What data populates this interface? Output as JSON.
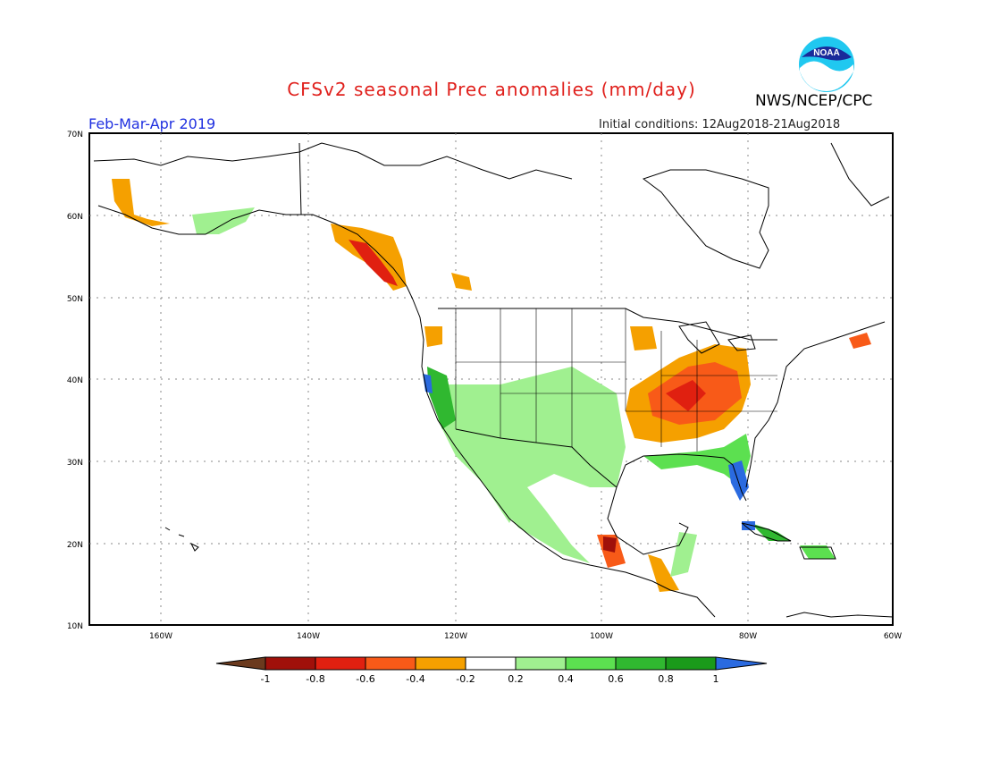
{
  "header": {
    "title": "CFSv2 seasonal Prec anomalies (mm/day)",
    "agency": "NWS/NCEP/CPC",
    "period": "Feb-Mar-Apr 2019",
    "initial_conditions": "Initial conditions: 12Aug2018-21Aug2018",
    "logo_text": "NOAA"
  },
  "colors": {
    "title": "#e0201c",
    "period": "#2030e0",
    "ocean": "#ffffff",
    "land_outline": "#000000",
    "grid": "#888888"
  },
  "axes": {
    "lat_labels": [
      "70N",
      "60N",
      "50N",
      "40N",
      "30N",
      "20N",
      "10N"
    ],
    "lon_labels": [
      "160W",
      "140W",
      "120W",
      "100W",
      "80W",
      "60W"
    ]
  },
  "colorbar": {
    "labels": [
      "-1",
      "-0.8",
      "-0.6",
      "-0.4",
      "-0.2",
      "0.2",
      "0.4",
      "0.6",
      "0.8",
      "1"
    ],
    "colors": [
      "#6b3a1e",
      "#a0100a",
      "#e02010",
      "#f85a18",
      "#f5a000",
      "#ffffff",
      "#a0f090",
      "#5ce050",
      "#30b830",
      "#1a9a1a",
      "#2a6ae0"
    ]
  },
  "anomaly_regions": [
    {
      "name": "southeast-us-dry",
      "color": "#f5a000"
    },
    {
      "name": "ohio-valley-very-dry",
      "color": "#f85a18"
    },
    {
      "name": "southwest-wet",
      "color": "#a0f090"
    },
    {
      "name": "gulf-wet",
      "color": "#5ce050"
    },
    {
      "name": "florida-very-wet",
      "color": "#2a6ae0"
    },
    {
      "name": "alaska-panhandle-dry",
      "color": "#f5a000"
    }
  ]
}
